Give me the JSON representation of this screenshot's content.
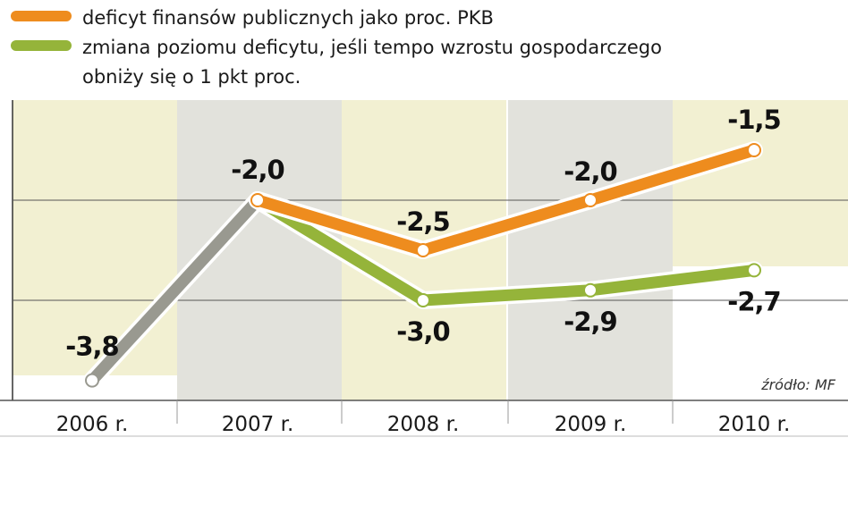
{
  "legend": {
    "orange_line1": "deficyt finansów publicznych jako proc. PKB",
    "green_line1": "zmiana poziomu deficytu, jeśli tempo wzrostu gospodarczego",
    "green_line2": "obniży się o 1 pkt proc."
  },
  "source": "źródło: MF",
  "chart_data": {
    "type": "line",
    "categories": [
      "2006 r.",
      "2007 r.",
      "2008 r.",
      "2009 r.",
      "2010 r."
    ],
    "ylim": [
      -4,
      -1
    ],
    "series": [
      {
        "name": "deficyt finansów publicznych jako proc. PKB",
        "color": "#ee8c1e",
        "values": [
          -3.8,
          -2.0,
          -2.5,
          -2.0,
          -1.5
        ],
        "labels": [
          "-3,8",
          "-2,0",
          "-2,5",
          "-2,0",
          "-1,5"
        ]
      },
      {
        "name": "zmiana poziomu deficytu, jeśli tempo wzrostu gospodarczego obniży się o 1 pkt proc.",
        "color": "#95b43a",
        "values": [
          null,
          -2.0,
          -3.0,
          -2.9,
          -2.7
        ],
        "labels": [
          "",
          "",
          "-3,0",
          "-2,9",
          "-2,7"
        ]
      }
    ],
    "history_color": "#999990",
    "column_colors": [
      "#f2f0d2",
      "#e2e2dc"
    ]
  }
}
